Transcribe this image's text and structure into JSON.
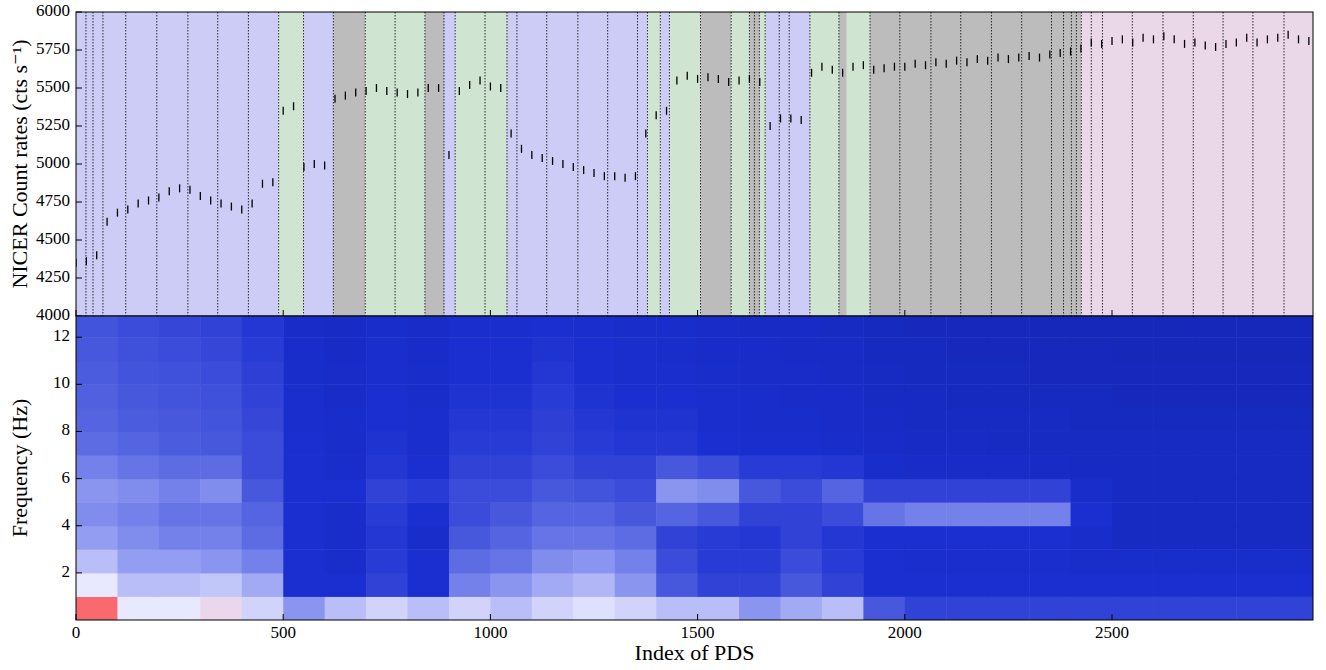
{
  "chart_data": [
    {
      "type": "scatter",
      "y_label": "NICER Count rates (cts s⁻¹)",
      "xlim": [
        0,
        2985
      ],
      "ylim": [
        4000,
        6000
      ],
      "xticks": [
        0,
        500,
        1000,
        1500,
        2000,
        2500
      ],
      "yticks": [
        4000,
        4250,
        4500,
        4750,
        5000,
        5250,
        5500,
        5750,
        6000
      ],
      "tick_labels": "y",
      "color": "#000000",
      "marker": "vline",
      "x": [
        0,
        25,
        50,
        75,
        100,
        125,
        150,
        175,
        200,
        225,
        250,
        275,
        300,
        325,
        350,
        375,
        400,
        425,
        450,
        475,
        500,
        525,
        550,
        575,
        600,
        625,
        650,
        675,
        700,
        725,
        750,
        775,
        800,
        825,
        850,
        875,
        900,
        925,
        950,
        975,
        1000,
        1025,
        1050,
        1075,
        1100,
        1125,
        1150,
        1175,
        1200,
        1225,
        1250,
        1275,
        1300,
        1325,
        1350,
        1375,
        1400,
        1425,
        1450,
        1475,
        1500,
        1525,
        1550,
        1575,
        1600,
        1625,
        1650,
        1675,
        1700,
        1725,
        1750,
        1775,
        1800,
        1825,
        1850,
        1875,
        1900,
        1925,
        1950,
        1975,
        2000,
        2025,
        2050,
        2075,
        2100,
        2125,
        2150,
        2175,
        2200,
        2225,
        2250,
        2275,
        2300,
        2325,
        2350,
        2375,
        2400,
        2425,
        2450,
        2475,
        2500,
        2525,
        2550,
        2575,
        2600,
        2625,
        2650,
        2675,
        2700,
        2725,
        2750,
        2775,
        2800,
        2825,
        2850,
        2875,
        2900,
        2925,
        2950,
        2975
      ],
      "values": [
        4350,
        4360,
        4400,
        4620,
        4680,
        4700,
        4740,
        4760,
        4780,
        4820,
        4840,
        4830,
        4790,
        4760,
        4740,
        4720,
        4700,
        4740,
        4870,
        4880,
        5350,
        5380,
        4980,
        5000,
        4990,
        5430,
        5450,
        5470,
        5480,
        5500,
        5480,
        5470,
        5460,
        5470,
        5500,
        5500,
        5060,
        5480,
        5520,
        5550,
        5510,
        5500,
        5200,
        5100,
        5060,
        5040,
        5020,
        5000,
        4980,
        4960,
        4940,
        4920,
        4920,
        4910,
        4920,
        5200,
        5320,
        5350,
        5550,
        5580,
        5560,
        5570,
        5560,
        5540,
        5550,
        5560,
        5540,
        5250,
        5300,
        5300,
        5290,
        5600,
        5640,
        5620,
        5600,
        5640,
        5650,
        5620,
        5630,
        5640,
        5640,
        5660,
        5650,
        5670,
        5660,
        5680,
        5670,
        5690,
        5680,
        5700,
        5690,
        5700,
        5710,
        5700,
        5720,
        5730,
        5740,
        5760,
        5800,
        5790,
        5810,
        5820,
        5800,
        5830,
        5820,
        5840,
        5820,
        5790,
        5800,
        5780,
        5770,
        5790,
        5800,
        5830,
        5800,
        5820,
        5830,
        5850,
        5820,
        5810
      ],
      "regions": [
        {
          "start": 0,
          "end": 489,
          "color": "#ccccf6"
        },
        {
          "start": 489,
          "end": 549,
          "color": "#cfe5d2"
        },
        {
          "start": 549,
          "end": 621,
          "color": "#ccccf6"
        },
        {
          "start": 621,
          "end": 698,
          "color": "#bcbcbc"
        },
        {
          "start": 698,
          "end": 842,
          "color": "#cfe5d2"
        },
        {
          "start": 842,
          "end": 888,
          "color": "#bcbcbc"
        },
        {
          "start": 888,
          "end": 915,
          "color": "#ccccf6"
        },
        {
          "start": 915,
          "end": 1040,
          "color": "#cfe5d2"
        },
        {
          "start": 1040,
          "end": 1379,
          "color": "#ccccf6"
        },
        {
          "start": 1379,
          "end": 1410,
          "color": "#cfe5d2"
        },
        {
          "start": 1410,
          "end": 1432,
          "color": "#ccccf6"
        },
        {
          "start": 1432,
          "end": 1507,
          "color": "#cfe5d2"
        },
        {
          "start": 1507,
          "end": 1581,
          "color": "#bcbcbc"
        },
        {
          "start": 1581,
          "end": 1625,
          "color": "#cfe5d2"
        },
        {
          "start": 1625,
          "end": 1650,
          "color": "#bcbcbc"
        },
        {
          "start": 1650,
          "end": 1665,
          "color": "#cfe5d2"
        },
        {
          "start": 1665,
          "end": 1771,
          "color": "#ccccf6"
        },
        {
          "start": 1771,
          "end": 1841,
          "color": "#cfe5d2"
        },
        {
          "start": 1841,
          "end": 1860,
          "color": "#bcbcbc"
        },
        {
          "start": 1860,
          "end": 1916,
          "color": "#cfe5d2"
        },
        {
          "start": 1916,
          "end": 2426,
          "color": "#bcbcbc"
        },
        {
          "start": 2426,
          "end": 2985,
          "color": "#ead8e8"
        }
      ],
      "dividers": [
        24,
        41,
        65,
        120,
        195,
        270,
        342,
        416,
        489,
        549,
        621,
        698,
        770,
        842,
        888,
        915,
        987,
        1040,
        1064,
        1136,
        1211,
        1283,
        1355,
        1379,
        1410,
        1432,
        1507,
        1581,
        1625,
        1637,
        1649,
        1663,
        1697,
        1721,
        1771,
        1841,
        1916,
        1988,
        2063,
        2135,
        2209,
        2282,
        2354,
        2383,
        2402,
        2414,
        2426,
        2450,
        2477,
        2549,
        2623,
        2696,
        2768,
        2840,
        2915
      ]
    },
    {
      "type": "heatmap",
      "x_label": "Index of PDS",
      "y_label": "Frequency (Hz)",
      "xlim": [
        0,
        2985
      ],
      "ylim": [
        0,
        12.9
      ],
      "xticks": [
        0,
        500,
        1000,
        1500,
        2000,
        2500
      ],
      "yticks": [
        2,
        4,
        6,
        8,
        10,
        12
      ],
      "zlim": [
        0,
        1
      ],
      "x_edges": [
        0,
        100,
        200,
        300,
        400,
        500,
        600,
        700,
        800,
        900,
        1000,
        1100,
        1200,
        1300,
        1400,
        1500,
        1600,
        1700,
        1800,
        1900,
        2000,
        2100,
        2200,
        2300,
        2400,
        2500,
        2600,
        2700,
        2800,
        2900,
        3000
      ],
      "y_edges": [
        0,
        1,
        2,
        3,
        4,
        5,
        6,
        7,
        8,
        9,
        10,
        11,
        12,
        13
      ],
      "cells": [
        [
          0.95,
          0.8,
          0.8,
          0.82,
          0.75,
          0.6,
          0.7,
          0.75,
          0.7,
          0.75,
          0.7,
          0.75,
          0.78,
          0.75,
          0.7,
          0.7,
          0.6,
          0.65,
          0.7,
          0.45,
          0.4,
          0.4,
          0.4,
          0.4,
          0.4,
          0.4,
          0.4,
          0.4,
          0.4,
          0.4
        ],
        [
          0.8,
          0.7,
          0.7,
          0.72,
          0.65,
          0.35,
          0.35,
          0.4,
          0.35,
          0.55,
          0.6,
          0.65,
          0.68,
          0.6,
          0.45,
          0.4,
          0.4,
          0.45,
          0.4,
          0.35,
          0.35,
          0.35,
          0.35,
          0.35,
          0.35,
          0.35,
          0.35,
          0.35,
          0.35,
          0.35
        ],
        [
          0.7,
          0.62,
          0.62,
          0.6,
          0.55,
          0.35,
          0.33,
          0.38,
          0.35,
          0.5,
          0.52,
          0.58,
          0.6,
          0.55,
          0.42,
          0.38,
          0.38,
          0.42,
          0.38,
          0.35,
          0.34,
          0.34,
          0.34,
          0.34,
          0.33,
          0.33,
          0.33,
          0.33,
          0.33,
          0.33
        ],
        [
          0.62,
          0.58,
          0.55,
          0.55,
          0.5,
          0.35,
          0.33,
          0.37,
          0.33,
          0.45,
          0.48,
          0.52,
          0.52,
          0.5,
          0.4,
          0.38,
          0.37,
          0.4,
          0.37,
          0.35,
          0.35,
          0.35,
          0.35,
          0.35,
          0.33,
          0.3,
          0.3,
          0.3,
          0.3,
          0.3
        ],
        [
          0.58,
          0.55,
          0.52,
          0.52,
          0.48,
          0.35,
          0.33,
          0.38,
          0.35,
          0.42,
          0.45,
          0.48,
          0.48,
          0.45,
          0.48,
          0.45,
          0.4,
          0.4,
          0.42,
          0.52,
          0.55,
          0.55,
          0.55,
          0.55,
          0.35,
          0.3,
          0.3,
          0.3,
          0.3,
          0.3
        ],
        [
          0.6,
          0.58,
          0.55,
          0.58,
          0.45,
          0.35,
          0.35,
          0.4,
          0.38,
          0.42,
          0.42,
          0.45,
          0.44,
          0.42,
          0.6,
          0.58,
          0.45,
          0.42,
          0.48,
          0.4,
          0.4,
          0.4,
          0.4,
          0.4,
          0.33,
          0.3,
          0.3,
          0.3,
          0.3,
          0.3
        ],
        [
          0.55,
          0.52,
          0.5,
          0.5,
          0.42,
          0.35,
          0.33,
          0.37,
          0.35,
          0.4,
          0.4,
          0.42,
          0.4,
          0.4,
          0.45,
          0.42,
          0.38,
          0.38,
          0.37,
          0.33,
          0.32,
          0.32,
          0.32,
          0.31,
          0.3,
          0.3,
          0.3,
          0.3,
          0.3,
          0.3
        ],
        [
          0.5,
          0.48,
          0.46,
          0.45,
          0.42,
          0.35,
          0.33,
          0.36,
          0.34,
          0.38,
          0.38,
          0.4,
          0.38,
          0.37,
          0.37,
          0.35,
          0.34,
          0.34,
          0.33,
          0.32,
          0.31,
          0.31,
          0.3,
          0.3,
          0.3,
          0.3,
          0.3,
          0.3,
          0.3,
          0.3
        ],
        [
          0.48,
          0.46,
          0.45,
          0.44,
          0.41,
          0.34,
          0.33,
          0.35,
          0.34,
          0.37,
          0.37,
          0.39,
          0.37,
          0.36,
          0.36,
          0.34,
          0.33,
          0.33,
          0.32,
          0.31,
          0.3,
          0.3,
          0.3,
          0.3,
          0.29,
          0.29,
          0.29,
          0.29,
          0.29,
          0.29
        ],
        [
          0.47,
          0.45,
          0.44,
          0.43,
          0.4,
          0.34,
          0.32,
          0.35,
          0.33,
          0.36,
          0.36,
          0.38,
          0.36,
          0.35,
          0.35,
          0.34,
          0.33,
          0.32,
          0.32,
          0.3,
          0.3,
          0.29,
          0.29,
          0.29,
          0.29,
          0.28,
          0.28,
          0.28,
          0.28,
          0.28
        ],
        [
          0.46,
          0.44,
          0.43,
          0.42,
          0.39,
          0.33,
          0.32,
          0.34,
          0.33,
          0.35,
          0.35,
          0.37,
          0.35,
          0.34,
          0.34,
          0.33,
          0.32,
          0.32,
          0.31,
          0.3,
          0.29,
          0.29,
          0.29,
          0.28,
          0.28,
          0.28,
          0.28,
          0.28,
          0.28,
          0.28
        ],
        [
          0.45,
          0.43,
          0.42,
          0.41,
          0.38,
          0.33,
          0.31,
          0.34,
          0.32,
          0.35,
          0.35,
          0.36,
          0.35,
          0.34,
          0.33,
          0.32,
          0.32,
          0.31,
          0.31,
          0.29,
          0.29,
          0.28,
          0.28,
          0.28,
          0.28,
          0.27,
          0.27,
          0.27,
          0.27,
          0.27
        ],
        [
          0.44,
          0.42,
          0.41,
          0.4,
          0.37,
          0.32,
          0.31,
          0.33,
          0.32,
          0.34,
          0.34,
          0.35,
          0.34,
          0.33,
          0.33,
          0.32,
          0.31,
          0.31,
          0.3,
          0.29,
          0.28,
          0.28,
          0.28,
          0.27,
          0.27,
          0.27,
          0.27,
          0.27,
          0.27,
          0.27
        ]
      ]
    }
  ]
}
